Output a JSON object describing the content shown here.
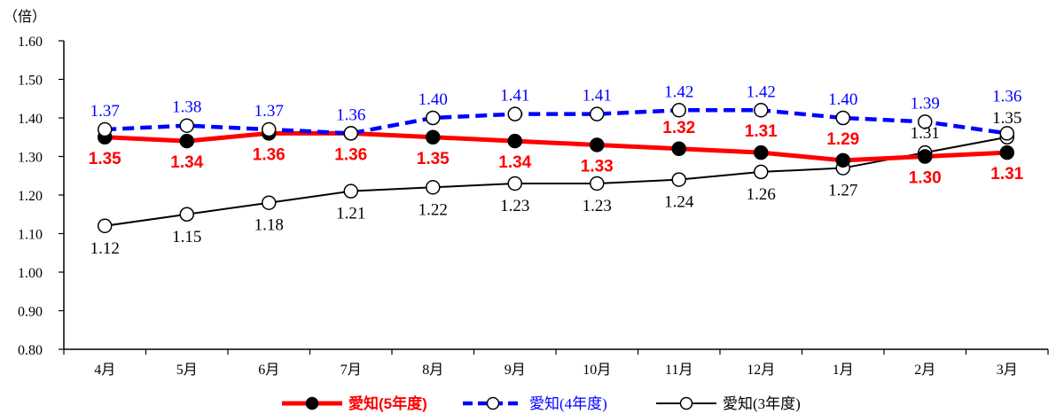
{
  "chart_data": {
    "type": "line",
    "unit_label": "（倍）",
    "categories": [
      "4月",
      "5月",
      "6月",
      "7月",
      "8月",
      "9月",
      "10月",
      "11月",
      "12月",
      "1月",
      "2月",
      "3月"
    ],
    "y_ticks": [
      "0.80",
      "0.90",
      "1.00",
      "1.10",
      "1.20",
      "1.30",
      "1.40",
      "1.50",
      "1.60"
    ],
    "ylim": [
      0.8,
      1.6
    ],
    "grid": false,
    "legend_position": "bottom",
    "series": [
      {
        "name": "愛知(5年度)",
        "color": "#ff0000",
        "style": "solid-thick",
        "marker": "filled-circle",
        "values": [
          1.35,
          1.34,
          1.36,
          1.36,
          1.35,
          1.34,
          1.33,
          1.32,
          1.31,
          1.29,
          1.3,
          1.31
        ],
        "labels": [
          "1.35",
          "1.34",
          "1.36",
          "1.36",
          "1.35",
          "1.34",
          "1.33",
          "1.32",
          "1.31",
          "1.29",
          "1.30",
          "1.31"
        ]
      },
      {
        "name": "愛知(4年度)",
        "color": "#0000ff",
        "style": "dashed",
        "marker": "open-circle",
        "values": [
          1.37,
          1.38,
          1.37,
          1.36,
          1.4,
          1.41,
          1.41,
          1.42,
          1.42,
          1.4,
          1.39,
          1.36
        ],
        "labels": [
          "1.37",
          "1.38",
          "1.37",
          "1.36",
          "1.40",
          "1.41",
          "1.41",
          "1.42",
          "1.42",
          "1.40",
          "1.39",
          "1.36"
        ]
      },
      {
        "name": "愛知(3年度)",
        "color": "#000000",
        "style": "solid-thin",
        "marker": "open-circle",
        "values": [
          1.12,
          1.15,
          1.18,
          1.21,
          1.22,
          1.23,
          1.23,
          1.24,
          1.26,
          1.27,
          1.31,
          1.35
        ],
        "labels": [
          "1.12",
          "1.15",
          "1.18",
          "1.21",
          "1.22",
          "1.23",
          "1.23",
          "1.24",
          "1.26",
          "1.27",
          "1.31",
          "1.35"
        ]
      }
    ]
  }
}
